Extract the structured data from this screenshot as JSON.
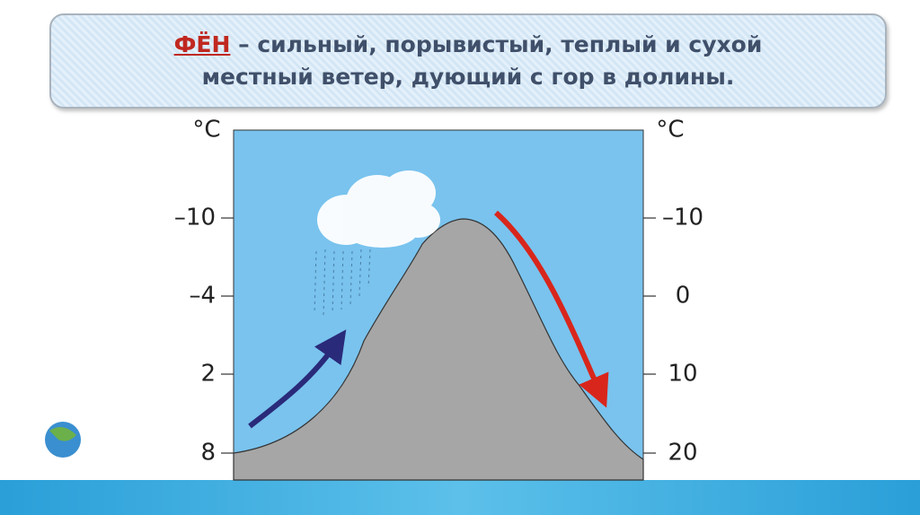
{
  "header": {
    "term": "ФЁН",
    "definition": " – сильный, порывистый, теплый и сухой местный ветер, дующий с гор в долины."
  },
  "diagram": {
    "left_unit": "°C",
    "right_unit": "°C",
    "left_labels": [
      "–10",
      "–4",
      "2",
      "8"
    ],
    "right_labels": [
      "–10",
      "0",
      "10",
      "20"
    ]
  }
}
